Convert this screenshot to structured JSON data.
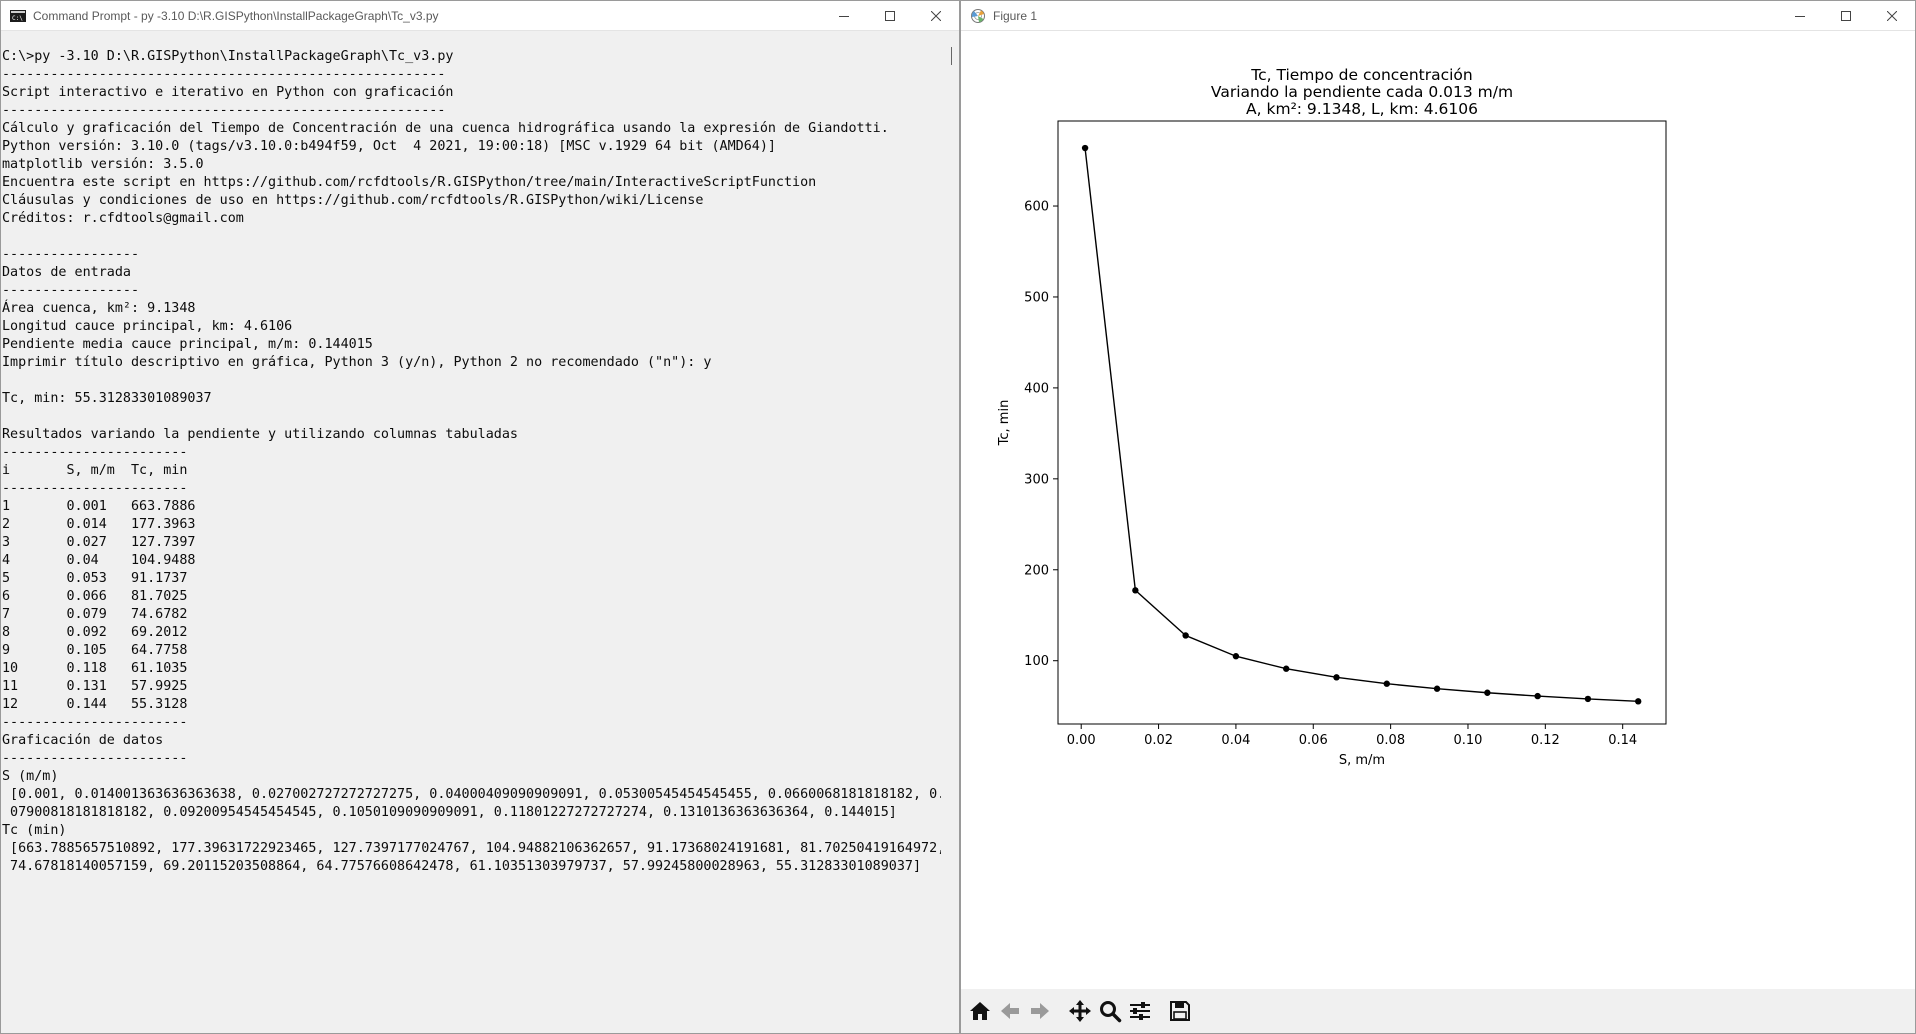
{
  "cmd_window": {
    "title": "Command Prompt - py  -3.10 D:\\R.GISPython\\InstallPackageGraph\\Tc_v3.py",
    "icon": "cmd-icon",
    "lines": [
      "C:\\>py -3.10 D:\\R.GISPython\\InstallPackageGraph\\Tc_v3.py",
      "-------------------------------------------------------",
      "Script interactivo e iterativo en Python con graficación",
      "-------------------------------------------------------",
      "Cálculo y graficación del Tiempo de Concentración de una cuenca hidrográfica usando la expresión de Giandotti.",
      "Python versión: 3.10.0 (tags/v3.10.0:b494f59, Oct  4 2021, 19:00:18) [MSC v.1929 64 bit (AMD64)]",
      "matplotlib versión: 3.5.0",
      "Encuentra este script en https://github.com/rcfdtools/R.GISPython/tree/main/InteractiveScriptFunction",
      "Cláusulas y condiciones de uso en https://github.com/rcfdtools/R.GISPython/wiki/License",
      "Créditos: r.cfdtools@gmail.com",
      "",
      "-----------------",
      "Datos de entrada",
      "-----------------",
      "Área cuenca, km²: 9.1348",
      "Longitud cauce principal, km: 4.6106",
      "Pendiente media cauce principal, m/m: 0.144015",
      "Imprimir título descriptivo en gráfica, Python 3 (y/n), Python 2 no recomendado (\"n\"): y",
      "",
      "Tc, min: 55.31283301089037",
      "",
      "Resultados variando la pendiente y utilizando columnas tabuladas",
      "-----------------------",
      "i       S, m/m  Tc, min",
      "-----------------------",
      "1       0.001   663.7886",
      "2       0.014   177.3963",
      "3       0.027   127.7397",
      "4       0.04    104.9488",
      "5       0.053   91.1737",
      "6       0.066   81.7025",
      "7       0.079   74.6782",
      "8       0.092   69.2012",
      "9       0.105   64.7758",
      "10      0.118   61.1035",
      "11      0.131   57.9925",
      "12      0.144   55.3128",
      "-----------------------",
      "Graficación de datos",
      "-----------------------",
      "S (m/m)",
      " [0.001, 0.014001363636363638, 0.027002727272727275, 0.04000409090909091, 0.05300545454545455, 0.0660068181818182, 0.",
      " 07900818181818182, 0.09200954545454545, 0.1050109090909091, 0.11801227272727274, 0.1310136363636364, 0.144015]",
      "Tc (min)",
      " [663.7885657510892, 177.39631722923465, 127.7397177024767, 104.94882106362657, 91.17368024191681, 81.70250419164972,",
      " 74.67818140057159, 69.20115203508864, 64.77576608642478, 61.10351303979737, 57.99245800028963, 55.31283301089037]"
    ]
  },
  "fig_window": {
    "title": "Figure 1",
    "icon": "matplotlib-icon",
    "toolbar": [
      {
        "name": "home-button",
        "icon": "home-icon"
      },
      {
        "name": "back-button",
        "icon": "arrow-left-icon"
      },
      {
        "name": "forward-button",
        "icon": "arrow-right-icon"
      },
      {
        "name": "pan-button",
        "icon": "move-icon"
      },
      {
        "name": "zoom-button",
        "icon": "magnifier-icon"
      },
      {
        "name": "subplots-button",
        "icon": "sliders-icon"
      },
      {
        "name": "save-button",
        "icon": "floppy-icon"
      }
    ]
  },
  "chart_data": {
    "type": "line",
    "title_lines": [
      "Tc, Tiempo de concentración",
      "Variando la pendiente cada 0.013 m/m",
      "A, km²: 9.1348, L, km: 4.6106"
    ],
    "xlabel": "S, m/m",
    "ylabel": "Tc, min",
    "xlim": [
      -0.006,
      0.1512
    ],
    "ylim": [
      30.4,
      693.5
    ],
    "xticks": [
      0.0,
      0.02,
      0.04,
      0.06,
      0.08,
      0.1,
      0.12,
      0.14
    ],
    "xtick_labels": [
      "0.00",
      "0.02",
      "0.04",
      "0.06",
      "0.08",
      "0.10",
      "0.12",
      "0.14"
    ],
    "yticks": [
      100,
      200,
      300,
      400,
      500,
      600
    ],
    "ytick_labels": [
      "100",
      "200",
      "300",
      "400",
      "500",
      "600"
    ],
    "grid": false,
    "marker": "circle",
    "line_color": "#000000",
    "x": [
      0.001,
      0.014001363636363638,
      0.027002727272727275,
      0.04000409090909091,
      0.05300545454545455,
      0.0660068181818182,
      0.07900818181818182,
      0.09200954545454545,
      0.1050109090909091,
      0.11801227272727274,
      0.1310136363636364,
      0.144015
    ],
    "y": [
      663.7885657510892,
      177.39631722923465,
      127.7397177024767,
      104.94882106362657,
      91.17368024191681,
      81.70250419164972,
      74.67818140057159,
      69.20115203508864,
      64.77576608642478,
      61.10351303979737,
      57.99245800028963,
      55.31283301089037
    ]
  }
}
